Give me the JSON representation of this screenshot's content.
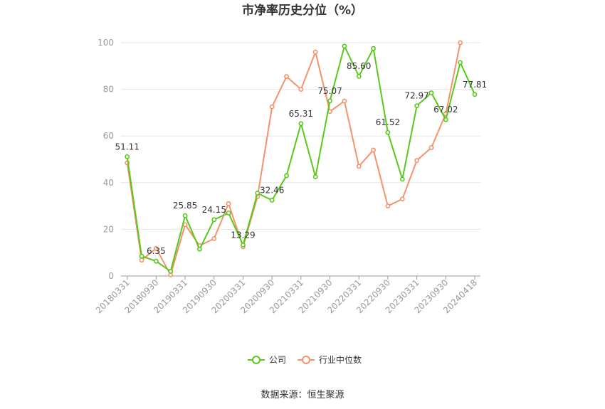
{
  "chart_data": {
    "type": "line",
    "title": "市净率历史分位（%）",
    "xlabel": "",
    "ylabel": "",
    "ylim": [
      0,
      100
    ],
    "yticks": [
      0,
      20,
      40,
      60,
      80,
      100
    ],
    "x_tick_labels": [
      "20180331",
      "20180930",
      "20190331",
      "20190930",
      "20200331",
      "20200930",
      "20210331",
      "20210930",
      "20220331",
      "20220930",
      "20230331",
      "20230930",
      "20240418"
    ],
    "x": [
      "20180331",
      "20180630",
      "20180930",
      "20181231",
      "20190331",
      "20190630",
      "20190930",
      "20191231",
      "20200331",
      "20200630",
      "20200930",
      "20201231",
      "20210331",
      "20210630",
      "20210930",
      "20211231",
      "20220331",
      "20220630",
      "20220930",
      "20221231",
      "20230331",
      "20230630",
      "20230930",
      "20231231",
      "20240418"
    ],
    "series": [
      {
        "name": "公司",
        "color": "#5ac71e",
        "values": [
          51.11,
          8.5,
          6.35,
          2.0,
          25.85,
          11.5,
          24.15,
          27.0,
          13.29,
          35.5,
          32.46,
          43.0,
          65.31,
          42.5,
          75.07,
          98.5,
          85.6,
          97.5,
          61.52,
          41.5,
          72.97,
          78.5,
          67.02,
          91.5,
          77.81
        ],
        "labels": [
          "51.11",
          "",
          "6.35",
          "",
          "25.85",
          "",
          "24.15",
          "",
          "13.29",
          "",
          "32.46",
          "",
          "65.31",
          "",
          "75.07",
          "",
          "85.60",
          "",
          "61.52",
          "",
          "72.97",
          "",
          "67.02",
          "",
          "77.81"
        ]
      },
      {
        "name": "行业中位数",
        "color": "#f4936b",
        "values": [
          48.5,
          6.8,
          11.8,
          0.5,
          22.0,
          13.0,
          16.0,
          31.0,
          12.5,
          34.0,
          72.5,
          85.5,
          80.0,
          96.0,
          70.5,
          75.0,
          47.0,
          54.0,
          30.0,
          33.0,
          49.5,
          55.0,
          69.5,
          100.0,
          null
        ]
      }
    ],
    "legend_position": "bottom",
    "grid": true
  },
  "source_text": "数据来源：恒生聚源"
}
